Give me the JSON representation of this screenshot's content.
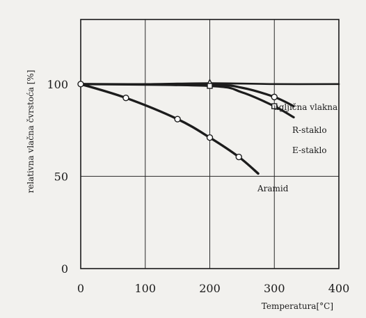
{
  "chart_data": {
    "type": "line",
    "xlabel": "Temperatura[°C]",
    "ylabel": "relativna vlačna čvrstoća  [%]",
    "xlim": [
      0,
      400
    ],
    "ylim": [
      0,
      135
    ],
    "x_ticks": [
      0,
      100,
      200,
      300,
      400
    ],
    "y_ticks": [
      0,
      50,
      100
    ],
    "grid": true,
    "series": [
      {
        "name": "ugljična vlakna",
        "marker": "triangle",
        "points": [
          [
            0,
            100
          ],
          [
            100,
            100
          ],
          [
            200,
            100.5
          ],
          [
            300,
            100
          ],
          [
            400,
            100
          ]
        ],
        "markers_at": [
          [
            200,
            100.5
          ]
        ]
      },
      {
        "name": "R-staklo",
        "marker": "circle",
        "points": [
          [
            0,
            100
          ],
          [
            200,
            99.6
          ],
          [
            250,
            98
          ],
          [
            300,
            93
          ],
          [
            330,
            88
          ]
        ],
        "markers_at": [
          [
            300,
            93
          ]
        ]
      },
      {
        "name": "E-staklo",
        "marker": "square",
        "points": [
          [
            0,
            100
          ],
          [
            200,
            99
          ],
          [
            250,
            95.5
          ],
          [
            300,
            88
          ],
          [
            330,
            82
          ]
        ],
        "markers_at": [
          [
            200,
            99
          ],
          [
            300,
            88
          ]
        ]
      },
      {
        "name": "Aramid",
        "marker": "circle",
        "points": [
          [
            0,
            100
          ],
          [
            70,
            92.5
          ],
          [
            150,
            81
          ],
          [
            200,
            71
          ],
          [
            245,
            60.5
          ],
          [
            275,
            51.5
          ]
        ],
        "markers_at": [
          [
            0,
            100
          ],
          [
            70,
            92.5
          ],
          [
            150,
            81
          ],
          [
            200,
            71
          ],
          [
            245,
            60.5
          ]
        ]
      }
    ]
  }
}
